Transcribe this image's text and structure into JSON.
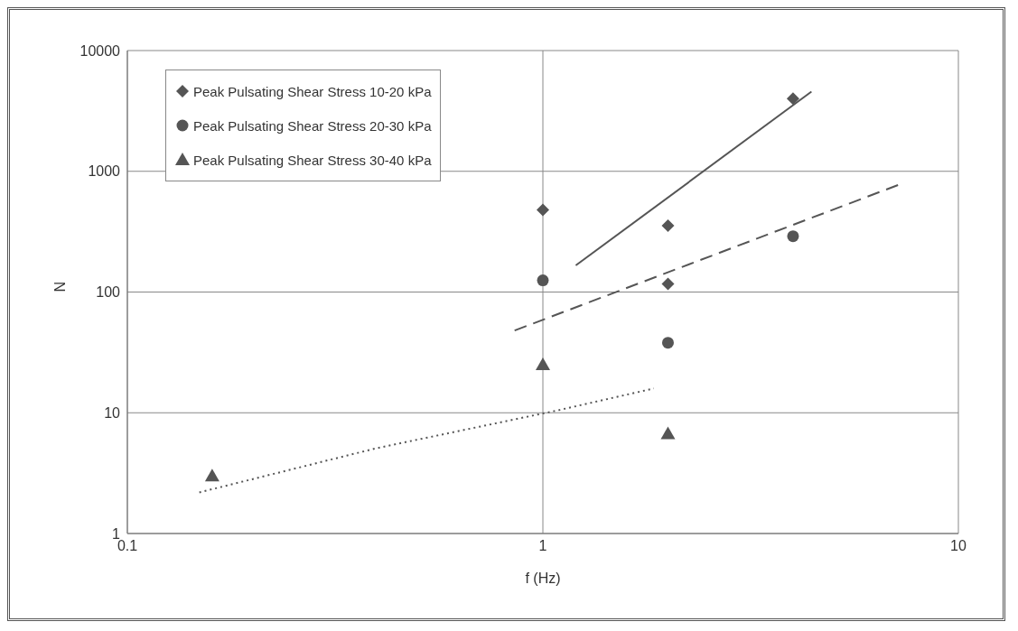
{
  "chart_data": {
    "type": "scatter",
    "xlabel": "f (Hz)",
    "ylabel": "N",
    "log": "xy",
    "xlim": [
      0.1,
      10
    ],
    "xticks": [
      0.1,
      1,
      10
    ],
    "ylim": [
      1,
      10000
    ],
    "yticks": [
      1,
      10,
      100,
      1000,
      10000
    ],
    "grid": true,
    "legend": "top left",
    "series": [
      {
        "name": "Peak Pulsating Shear Stress 10-20 kPa",
        "color": "#555555",
        "marker": "diamond",
        "x": [
          1,
          2,
          2,
          4
        ],
        "values": [
          480,
          355,
          117,
          4000
        ]
      },
      {
        "name": "Peak Pulsating Shear Stress 20-30 kPa",
        "color": "#555555",
        "marker": "circle",
        "x": [
          1,
          2,
          4
        ],
        "values": [
          125,
          38,
          290
        ]
      },
      {
        "name": "Peak Pulsating Shear Stress 30-40 kPa",
        "color": "#555555",
        "marker": "triangle",
        "x": [
          0.16,
          1,
          2
        ],
        "values": [
          3,
          25,
          6.7
        ]
      },
      {
        "type": "line",
        "color": "#555555",
        "line_style": "solid",
        "marker": "none",
        "x": [
          1.2,
          4.43
        ],
        "values": [
          166,
          4570
        ]
      },
      {
        "type": "line",
        "color": "#555555",
        "line_style": "dashed",
        "marker": "none",
        "x": [
          0.855,
          7.16
        ],
        "values": [
          48,
          770
        ]
      },
      {
        "type": "line",
        "color": "#555555",
        "line_style": "dotted",
        "marker": "none",
        "x": [
          0.149,
          0.396,
          1.09,
          1.85
        ],
        "values": [
          2.19,
          5.07,
          10.5,
          15.9
        ]
      }
    ]
  }
}
